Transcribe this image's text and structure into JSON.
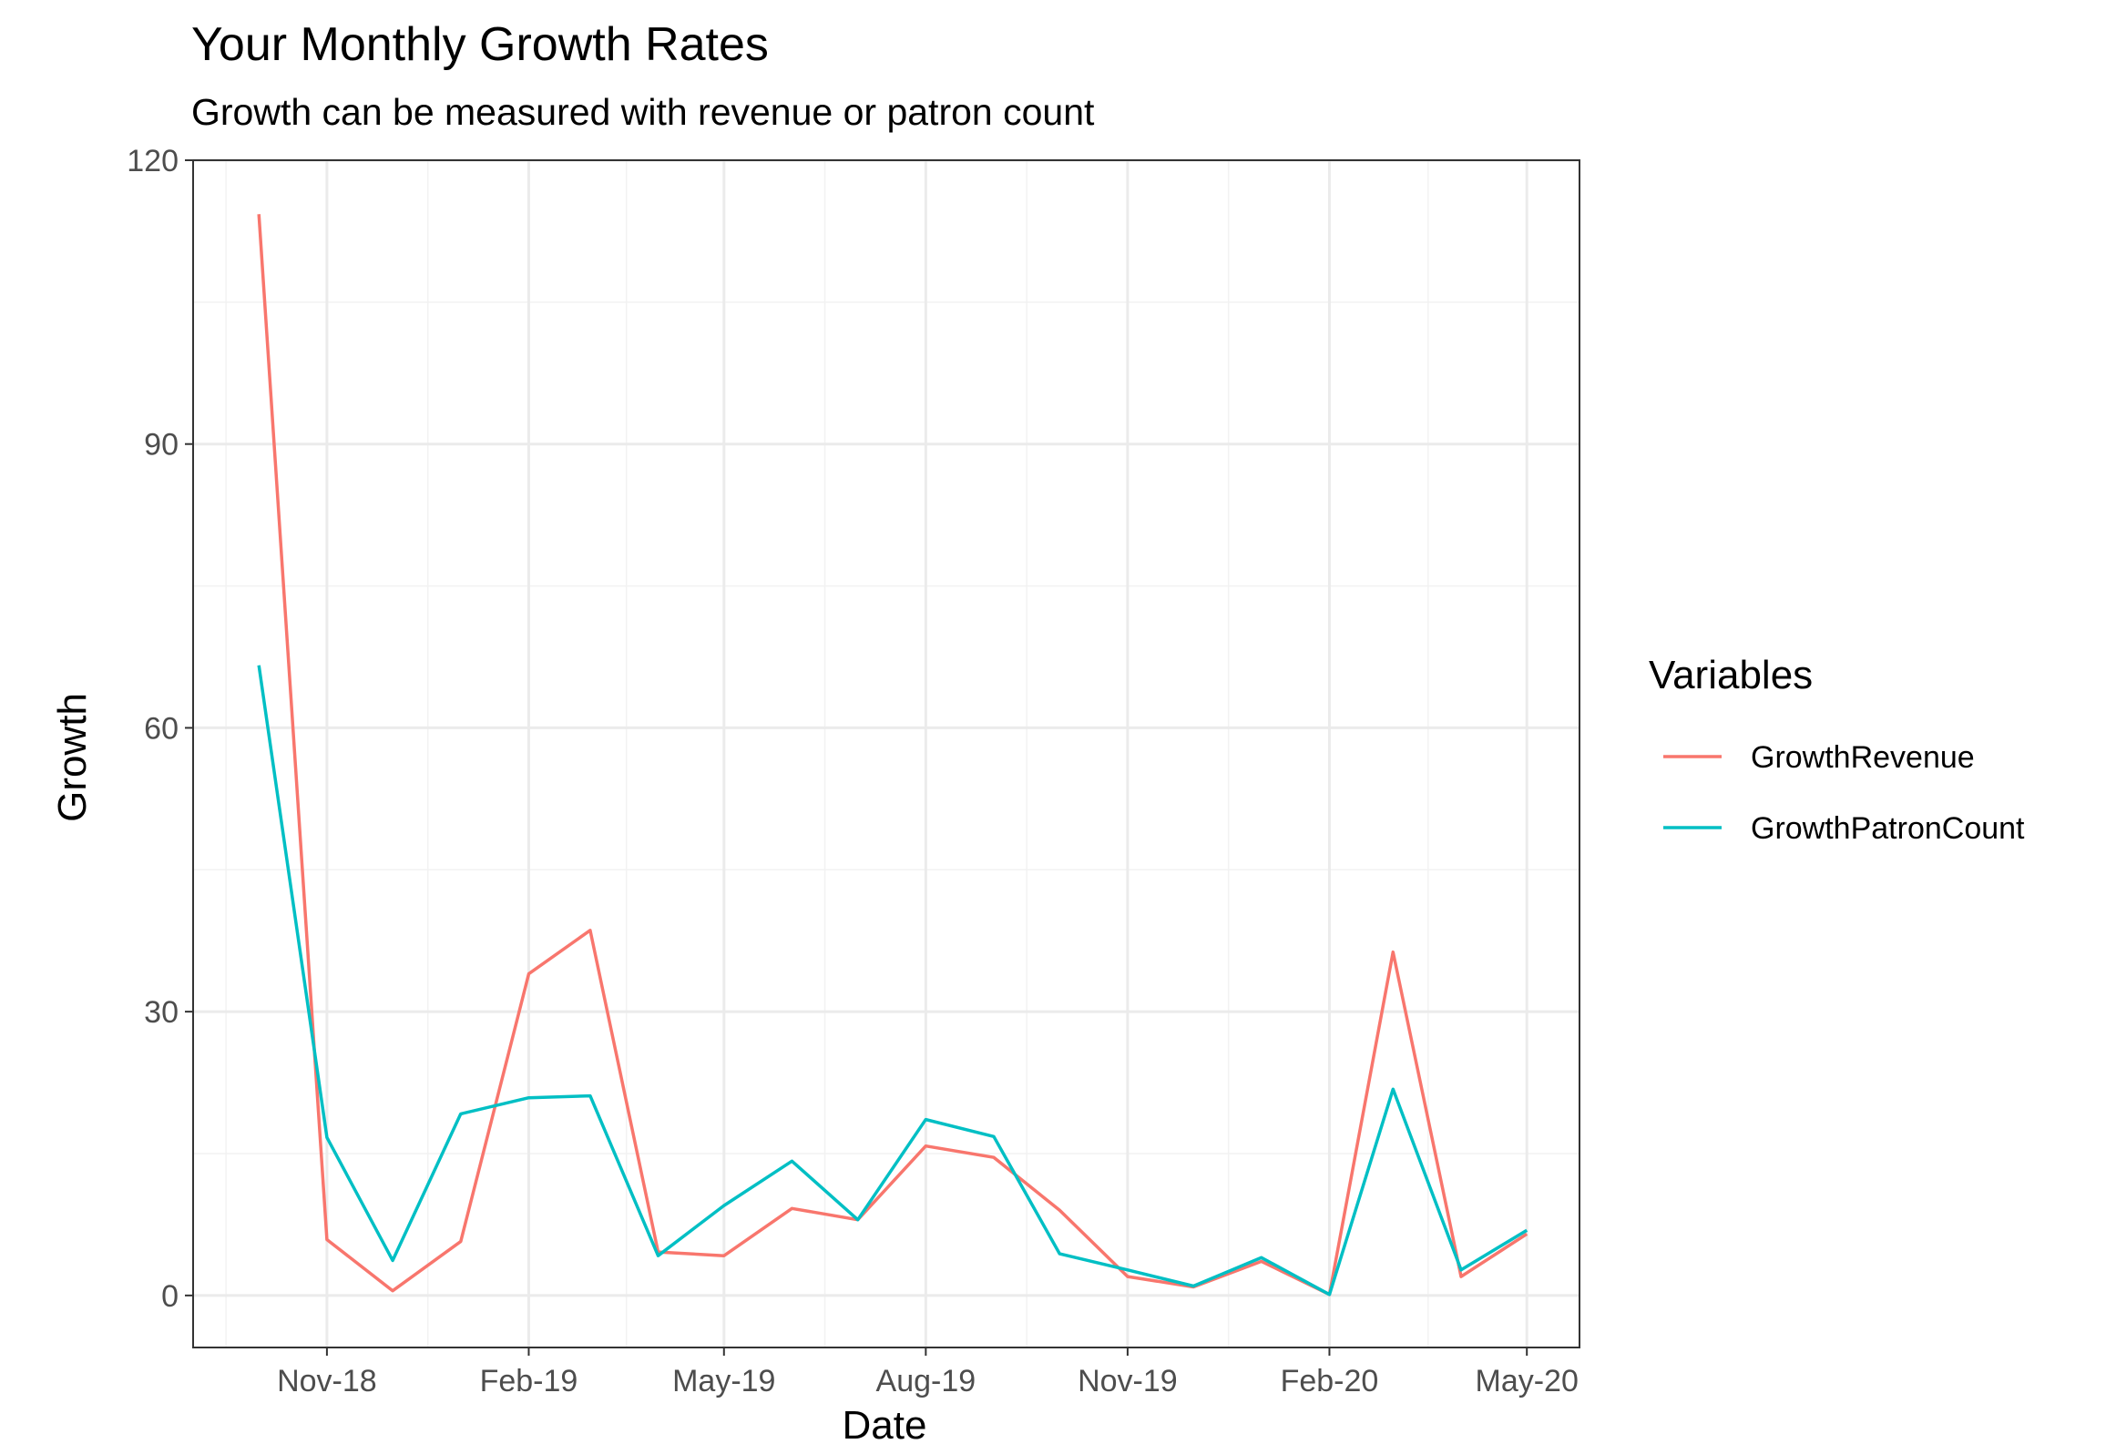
{
  "chart_data": {
    "type": "line",
    "title": "Your Monthly Growth Rates",
    "subtitle": "Growth can be measured with revenue or patron count",
    "xlabel": "Date",
    "ylabel": "Growth",
    "x_type": "date",
    "xlim": [
      "2018-09-01",
      "2020-05-25"
    ],
    "ylim": [
      -5.5,
      120
    ],
    "x_ticks": [
      {
        "date": "2018-11-01",
        "label": "Nov-18"
      },
      {
        "date": "2019-02-01",
        "label": "Feb-19"
      },
      {
        "date": "2019-05-01",
        "label": "May-19"
      },
      {
        "date": "2019-08-01",
        "label": "Aug-19"
      },
      {
        "date": "2019-11-01",
        "label": "Nov-19"
      },
      {
        "date": "2020-02-01",
        "label": "Feb-20"
      },
      {
        "date": "2020-05-01",
        "label": "May-20"
      }
    ],
    "y_ticks": [
      0,
      30,
      60,
      90,
      120
    ],
    "grid": true,
    "legend": {
      "title": "Variables",
      "position": "right"
    },
    "x": [
      "2018-10-01",
      "2018-11-01",
      "2018-12-01",
      "2019-01-01",
      "2019-02-01",
      "2019-03-01",
      "2019-04-01",
      "2019-05-01",
      "2019-06-01",
      "2019-07-01",
      "2019-08-01",
      "2019-09-01",
      "2019-10-01",
      "2019-11-01",
      "2019-12-01",
      "2020-01-01",
      "2020-02-01",
      "2020-03-01",
      "2020-04-01",
      "2020-05-01"
    ],
    "series": [
      {
        "name": "GrowthRevenue",
        "color": "#F8766D",
        "values": [
          114.3,
          5.9,
          0.5,
          5.7,
          34.0,
          38.6,
          4.6,
          4.2,
          9.2,
          8.0,
          15.8,
          14.6,
          9.0,
          2.0,
          0.9,
          3.6,
          0.1,
          36.3,
          2.0,
          6.5
        ]
      },
      {
        "name": "GrowthPatronCount",
        "color": "#00BFC4",
        "values": [
          66.6,
          16.7,
          3.7,
          19.2,
          20.9,
          21.1,
          4.2,
          9.5,
          14.2,
          8.0,
          18.6,
          16.8,
          4.4,
          2.7,
          1.0,
          4.0,
          0.1,
          21.8,
          2.7,
          6.9
        ]
      }
    ]
  }
}
